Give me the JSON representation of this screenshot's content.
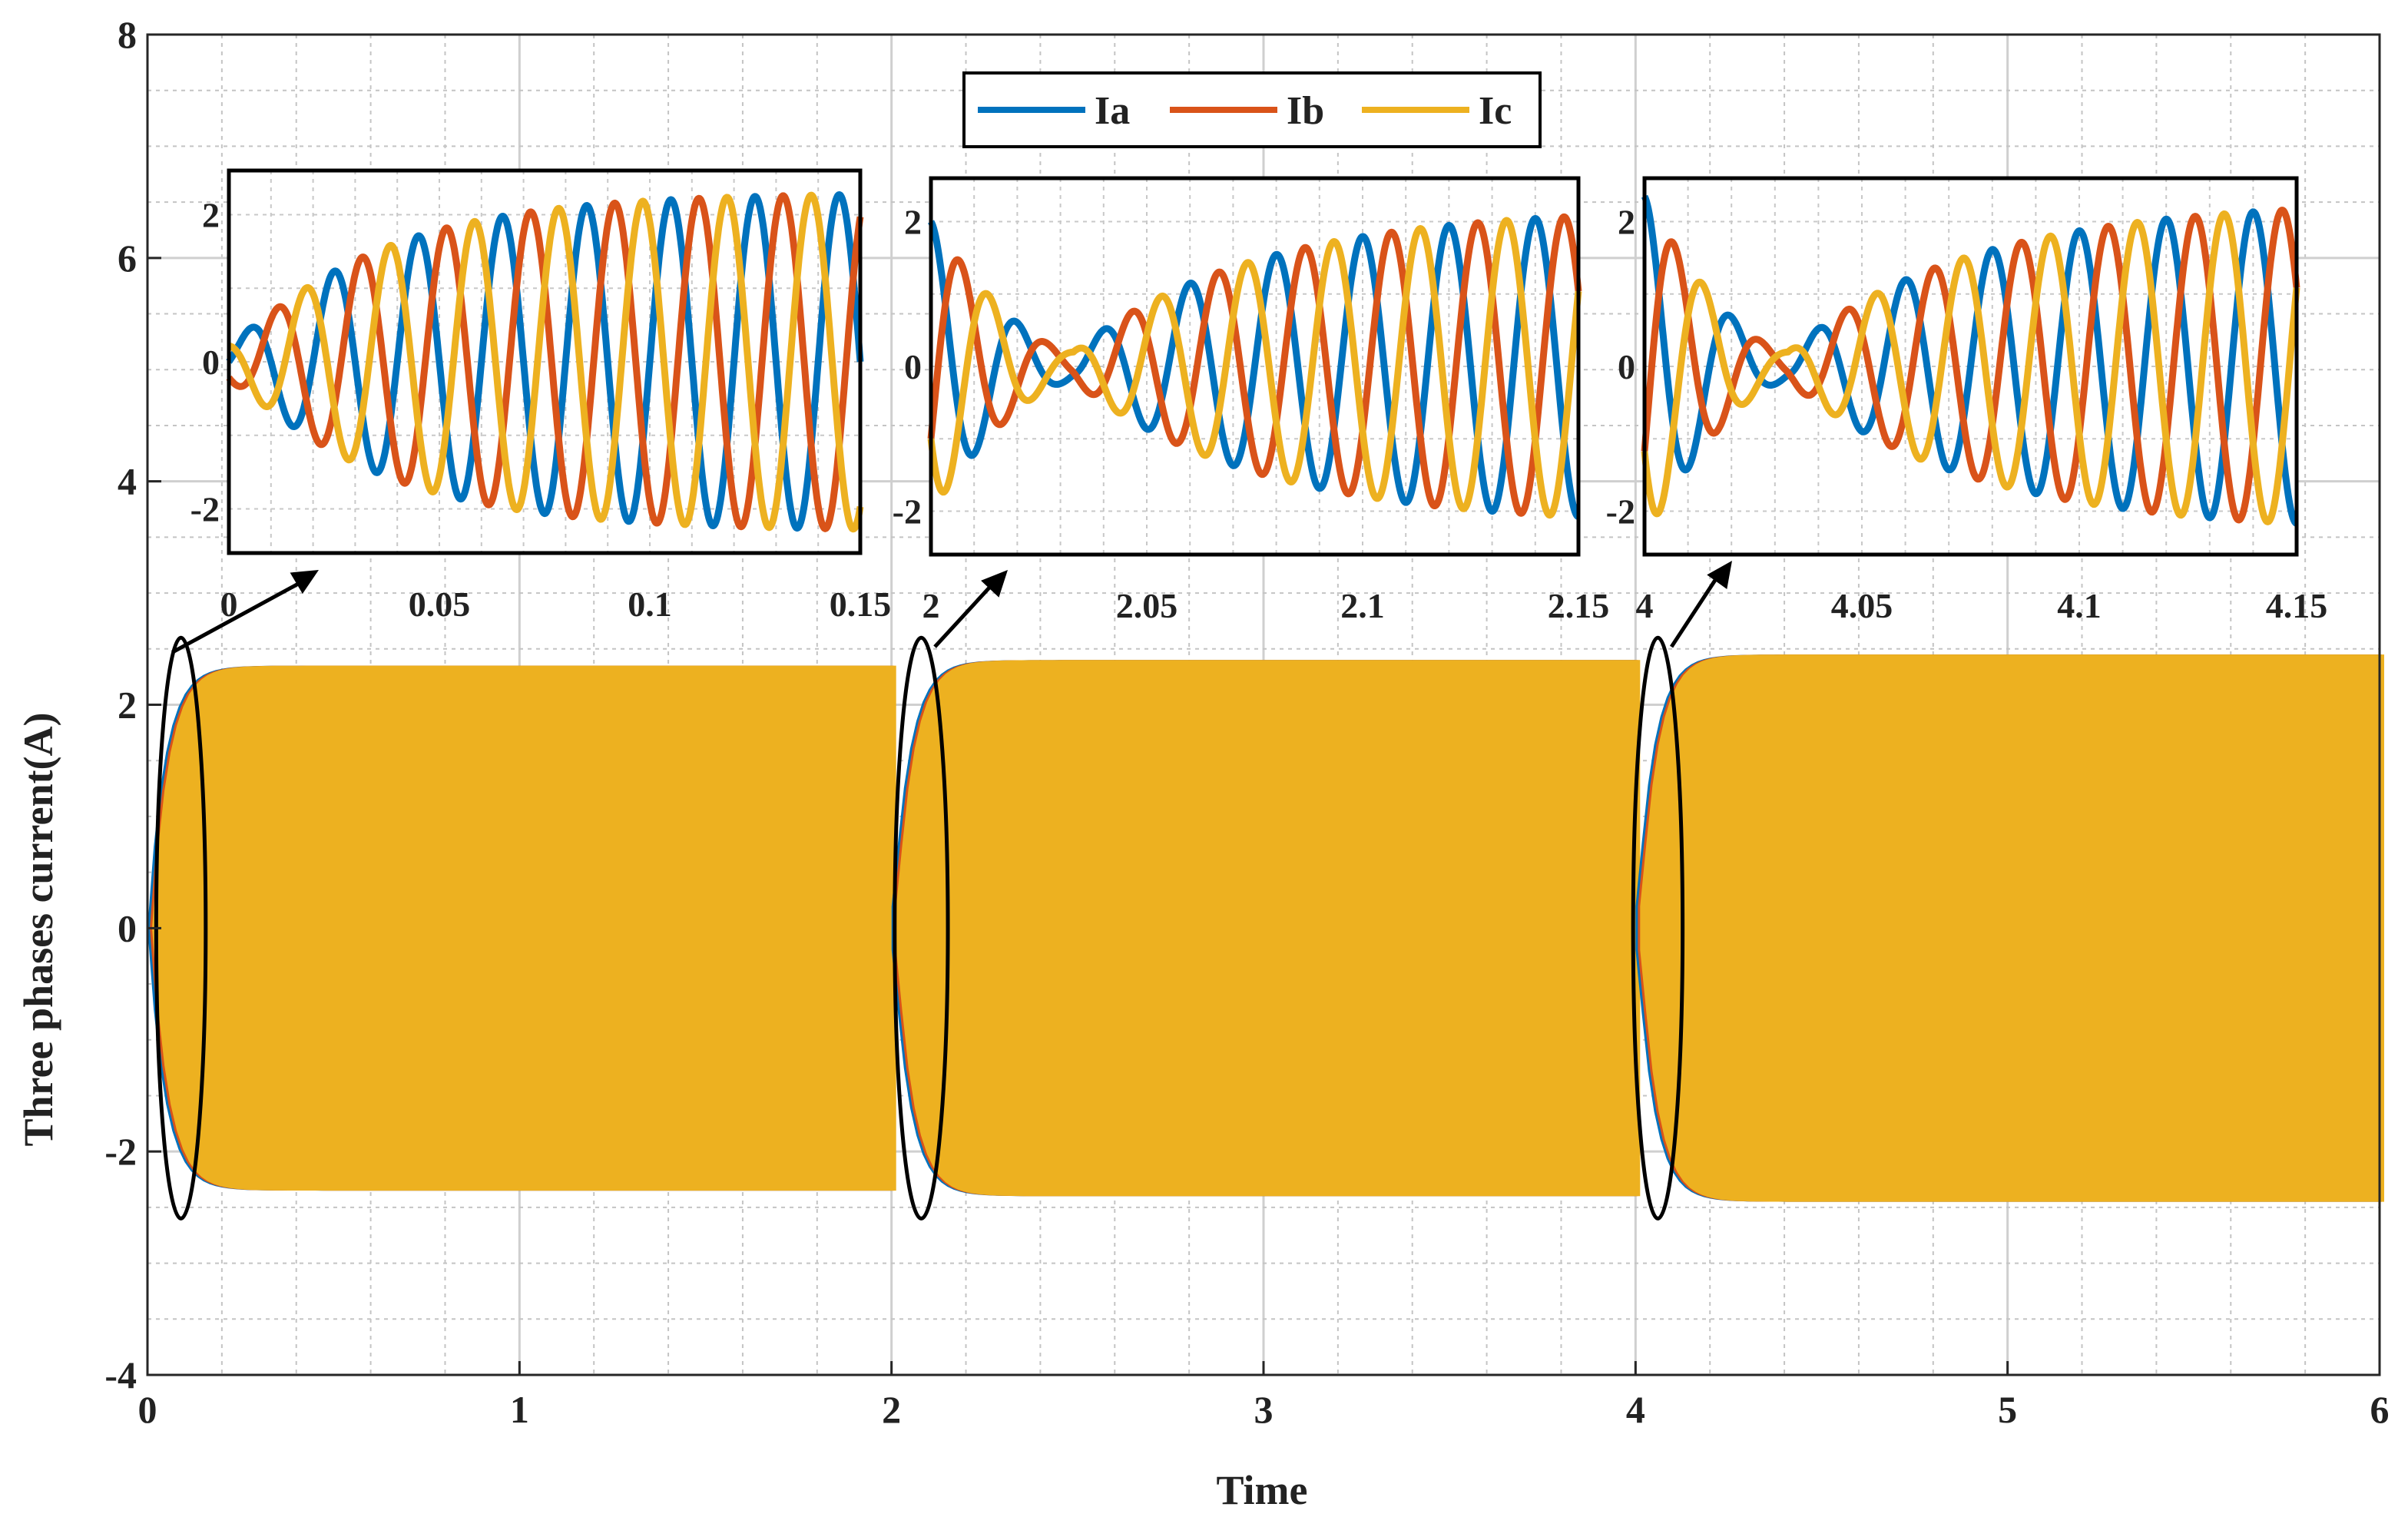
{
  "chart_data": {
    "type": "line",
    "xlabel": "Time",
    "ylabel": "Three phases current(A)",
    "xlim": [
      0,
      6
    ],
    "ylim": [
      -4,
      8
    ],
    "xticks": [
      "0",
      "1",
      "2",
      "3",
      "4",
      "5",
      "6"
    ],
    "yticks": [
      "-4",
      "-2",
      "0",
      "2",
      "4",
      "6",
      "8"
    ],
    "grid": true,
    "legend_position": "top-center",
    "series": [
      {
        "name": "Ia",
        "color": "#0072BD",
        "phase_deg": 0
      },
      {
        "name": "Ib",
        "color": "#D95319",
        "phase_deg": -120
      },
      {
        "name": "Ic",
        "color": "#EDB120",
        "phase_deg": 120
      }
    ],
    "frequency_hz": 50,
    "segments": [
      {
        "t_start": 0,
        "t_end": 2,
        "steady_amplitude": 2.35
      },
      {
        "t_start": 2,
        "t_end": 4,
        "steady_amplitude": 2.4
      },
      {
        "t_start": 4,
        "t_end": 6,
        "steady_amplitude": 2.45
      }
    ],
    "insets": [
      {
        "xlim": [
          0,
          0.15
        ],
        "ylim": [
          -2.6,
          2.6
        ],
        "xticks": [
          "0",
          "0.05",
          "0.1",
          "0.15"
        ],
        "yticks": [
          "-2",
          "0",
          "2"
        ],
        "envelope": "rise",
        "final_amplitude": 2.3
      },
      {
        "xlim": [
          2,
          2.15
        ],
        "ylim": [
          -2.6,
          2.6
        ],
        "xticks": [
          "2",
          "2.05",
          "2.1",
          "2.15"
        ],
        "yticks": [
          "-2",
          "0",
          "2"
        ],
        "envelope": "dip",
        "initial_amplitude": 2.0,
        "min_amplitude": 0.2,
        "final_amplitude": 2.2
      },
      {
        "xlim": [
          4,
          4.15
        ],
        "ylim": [
          -2.6,
          2.6
        ],
        "xticks": [
          "4",
          "4.05",
          "4.1",
          "4.15"
        ],
        "yticks": [
          "-2",
          "0",
          "2"
        ],
        "envelope": "dip",
        "initial_amplitude": 2.35,
        "min_amplitude": 0.2,
        "final_amplitude": 2.3
      }
    ]
  }
}
